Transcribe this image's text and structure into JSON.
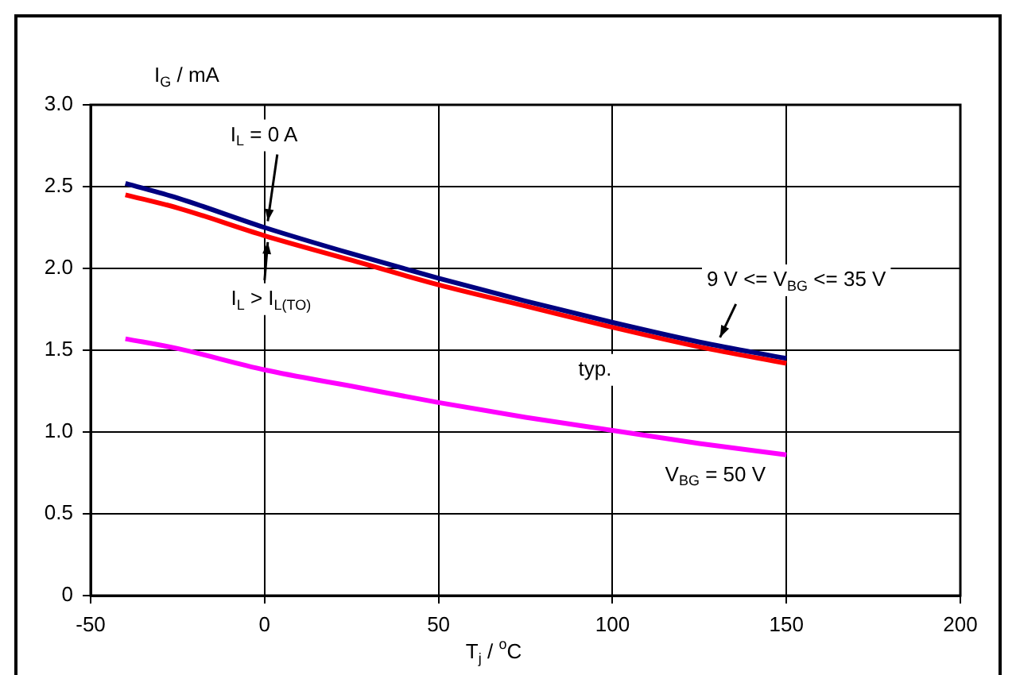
{
  "chart_data": {
    "type": "line",
    "xlabel": "T$_{j}$ / $^{o}$C",
    "ylabel": "I$_{G}$ / mA",
    "x": [
      -40,
      -25,
      0,
      25,
      50,
      75,
      100,
      125,
      150
    ],
    "series": [
      {
        "name": "I$_{L}$ = 0 A",
        "color": "#000080",
        "values": [
          2.52,
          2.43,
          2.25,
          2.09,
          1.94,
          1.8,
          1.67,
          1.55,
          1.45
        ]
      },
      {
        "name": "I$_{L}$ > I$_{L(TO)}$",
        "color": "#ff0000",
        "values": [
          2.45,
          2.37,
          2.2,
          2.05,
          1.9,
          1.77,
          1.64,
          1.52,
          1.42
        ]
      },
      {
        "name": "V$_{BG}$ = 50 V",
        "color": "#ff00ff",
        "values": [
          1.57,
          1.51,
          1.38,
          1.28,
          1.18,
          1.09,
          1.01,
          0.93,
          0.86
        ]
      }
    ],
    "annotations": [
      {
        "text": "9 V <= V$_{BG}$ <= 35 V",
        "x": 130,
        "y": 1.52
      },
      "typ."
    ],
    "xlim": [
      -50,
      200
    ],
    "xticks": [
      -50,
      0,
      50,
      100,
      150,
      200
    ],
    "ylim": [
      0,
      3
    ],
    "yticks": [
      0,
      {
        "value": 0.5,
        "label": "0.5"
      },
      {
        "value": 1,
        "label": "1.0"
      },
      {
        "value": 1.5,
        "label": "1.5"
      },
      {
        "value": 2,
        "label": "2.0"
      },
      {
        "value": 2.5,
        "label": "2.5"
      },
      {
        "value": 3,
        "label": "3.0"
      }
    ],
    "grid": true,
    "legend": false,
    "marker": "none",
    "line_style": "solid"
  }
}
